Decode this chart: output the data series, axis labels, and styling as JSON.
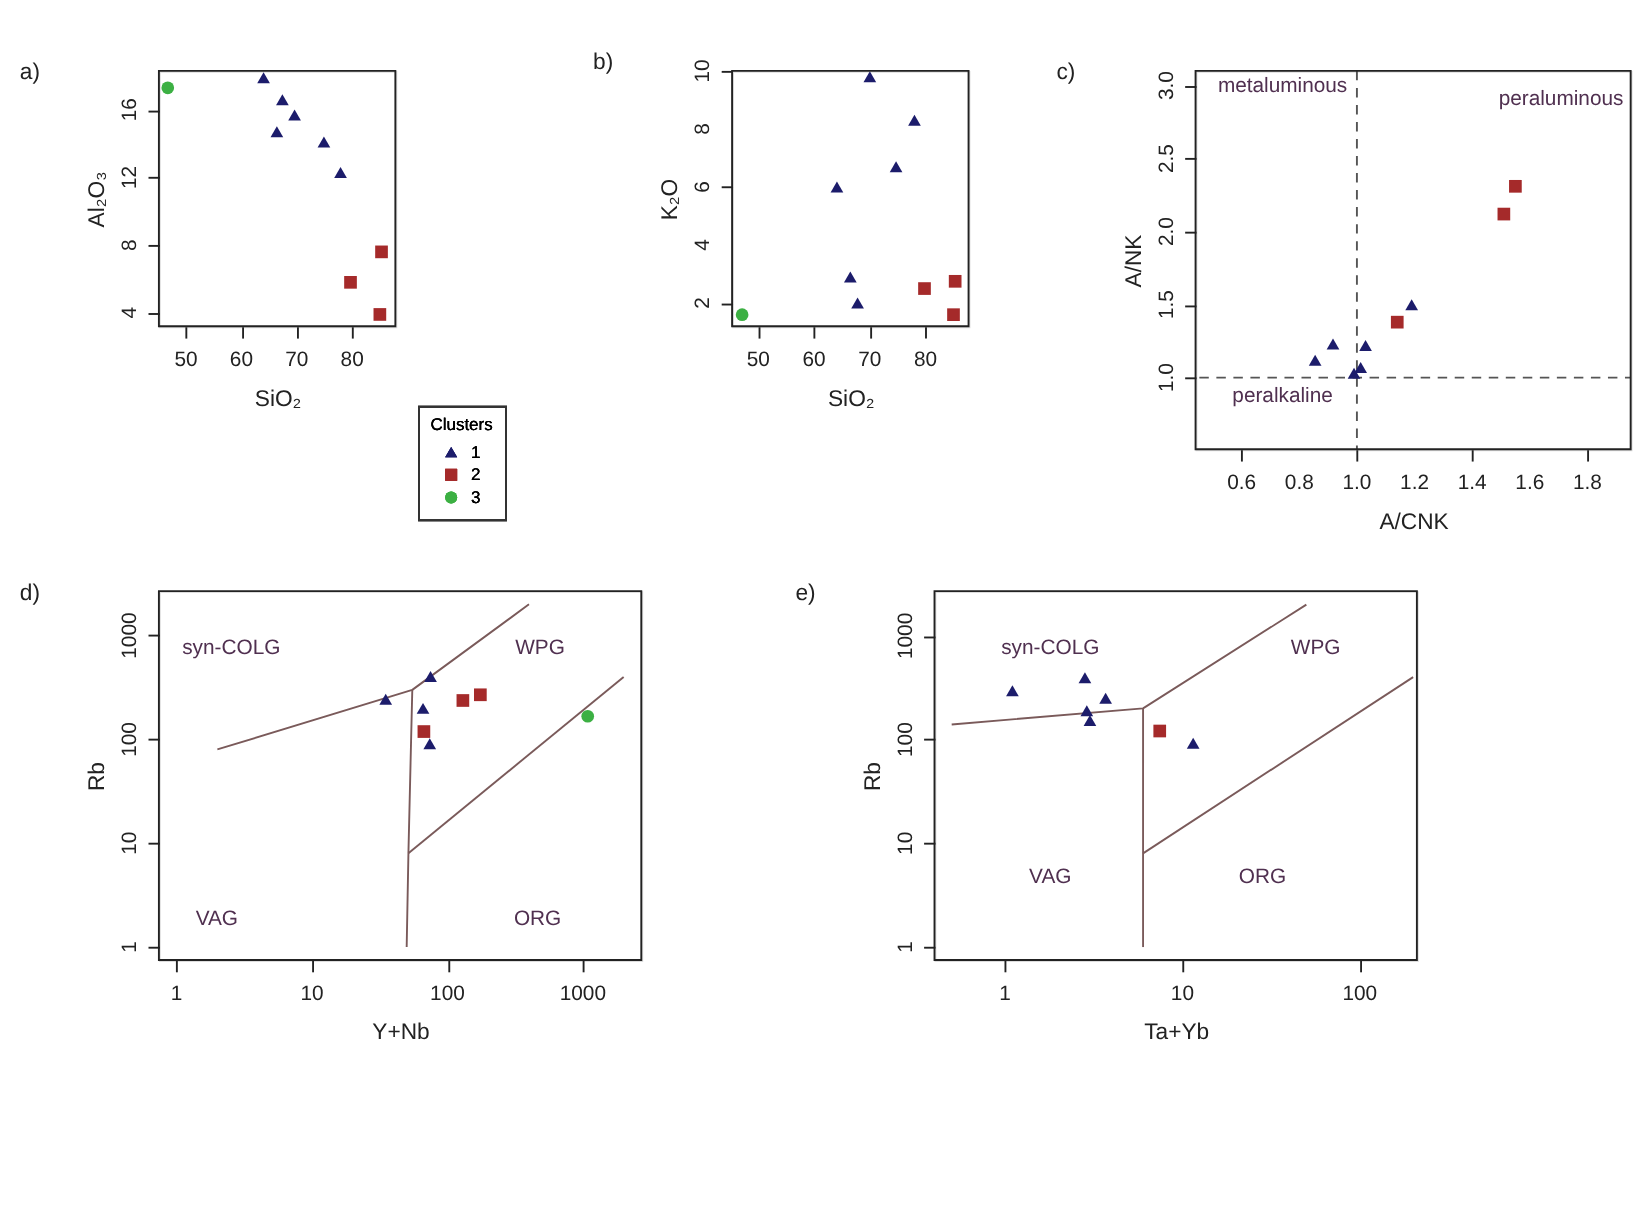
{
  "chart_data": [
    {
      "type": "scatter",
      "title": "a)",
      "xlabel": "SiO₂",
      "ylabel": "Al₂O₃",
      "xlim": [
        45.1,
        87.8
      ],
      "ylim": [
        3.2,
        18.3
      ],
      "xticks": [
        50,
        60,
        70,
        80
      ],
      "yticks": [
        4,
        8,
        12,
        16
      ],
      "grid": false,
      "legend": "bottom right",
      "legend_title": "Clusters",
      "series": [
        {
          "name": "1",
          "color": "#1c1c6b",
          "marker": "triangle",
          "x": [
            64.0,
            67.4,
            69.6,
            66.4,
            74.9,
            77.9
          ],
          "values": [
            17.9,
            16.6,
            15.7,
            14.7,
            14.1,
            12.3
          ]
        },
        {
          "name": "2",
          "color": "#a52a2a",
          "marker": "square",
          "x": [
            85.3,
            79.7,
            85.0
          ],
          "values": [
            7.6,
            5.8,
            3.9
          ]
        },
        {
          "name": "3",
          "color": "#3cb043",
          "marker": "circle",
          "x": [
            46.7
          ],
          "values": [
            17.3
          ]
        }
      ]
    },
    {
      "type": "scatter",
      "title": "b)",
      "xlabel": "SiO₂",
      "ylabel": "K₂O",
      "xlim": [
        45.3,
        87.7
      ],
      "ylim": [
        1.2,
        10.0
      ],
      "xticks": [
        50,
        60,
        70,
        80
      ],
      "yticks": [
        2,
        4,
        6,
        8,
        10
      ],
      "grid": false,
      "series": [
        {
          "color": "#1c1c6b",
          "marker": "triangle",
          "x": [
            70.0,
            78.0,
            74.7,
            64.1,
            66.5,
            67.8
          ],
          "values": [
            9.8,
            8.3,
            6.7,
            6.0,
            2.9,
            2.0
          ]
        },
        {
          "color": "#a52a2a",
          "marker": "square",
          "x": [
            79.8,
            85.3,
            85.0
          ],
          "values": [
            2.5,
            2.75,
            1.6
          ]
        },
        {
          "color": "#3cb043",
          "marker": "circle",
          "x": [
            47.1
          ],
          "values": [
            1.6
          ]
        }
      ]
    },
    {
      "type": "scatter",
      "title": "c)",
      "xlabel": "A/CNK",
      "ylabel": "A/NK",
      "xlim": [
        0.44,
        1.95
      ],
      "ylim": [
        0.51,
        3.1
      ],
      "xticks": [
        0.6,
        0.8,
        {
          "value": 1,
          "label": "1.0"
        },
        1.2,
        1.4,
        1.6,
        1.8
      ],
      "yticks": [
        {
          "value": 1,
          "label": "1.0"
        },
        1.5,
        {
          "value": 2,
          "label": "2.0"
        },
        2.5,
        {
          "value": 3,
          "label": "3.0"
        }
      ],
      "grid": false,
      "ref_lines": [
        {
          "axis": "x",
          "value": 1.0,
          "color": "#555555",
          "line_style": "dashed"
        },
        {
          "axis": "y",
          "value": 1.0,
          "color": "#555555",
          "line_style": "dashed"
        }
      ],
      "annotations": [
        "metaluminous",
        "peraluminous",
        "peralkaline"
      ],
      "series": [
        {
          "color": "#1c1c6b",
          "marker": "triangle",
          "x": [
            0.855,
            0.917,
            1.03,
            1.19,
            1.013,
            0.99
          ],
          "values": [
            1.12,
            1.23,
            1.22,
            1.5,
            1.07,
            1.03
          ]
        },
        {
          "color": "#a52a2a",
          "marker": "square",
          "x": [
            1.14,
            1.51,
            1.55
          ],
          "values": [
            1.38,
            2.12,
            2.31
          ]
        }
      ]
    },
    {
      "type": "scatter",
      "title": "d)",
      "xlabel": "Y+Nb",
      "ylabel": "Rb",
      "log": "xy",
      "xlim": [
        0.74,
        2700
      ],
      "ylim": [
        0.75,
        2680
      ],
      "xticks": [
        1,
        10,
        100,
        1000
      ],
      "yticks": [
        1,
        10,
        100,
        1000
      ],
      "grid": false,
      "annotations": [
        "syn-COLG",
        "WPG",
        "VAG",
        "ORG"
      ],
      "series": [
        {
          "type": "line",
          "color": "#7a5a5a",
          "line_style": "solid",
          "x": [
            2,
            55,
            400
          ],
          "values": [
            80,
            300,
            2000
          ]
        },
        {
          "type": "line",
          "color": "#7a5a5a",
          "line_style": "solid",
          "x": [
            55,
            51.5,
            50
          ],
          "values": [
            300,
            8,
            1
          ]
        },
        {
          "type": "line",
          "color": "#7a5a5a",
          "line_style": "solid",
          "x": [
            51.5,
            2000
          ],
          "values": [
            8,
            400
          ]
        },
        {
          "color": "#1c1c6b",
          "marker": "triangle",
          "x": [
            35,
            75,
            66,
            74
          ],
          "values": [
            243,
            403,
            199,
            91
          ]
        },
        {
          "color": "#a52a2a",
          "marker": "square",
          "x": [
            67,
            130,
            175
          ],
          "values": [
            119,
            237,
            269
          ]
        },
        {
          "color": "#3cb043",
          "marker": "circle",
          "x": [
            1086
          ],
          "values": [
            167
          ]
        }
      ]
    },
    {
      "type": "scatter",
      "title": "e)",
      "xlabel": "Ta+Yb",
      "ylabel": "Rb",
      "log": "xy",
      "xlim": [
        0.4,
        210
      ],
      "ylim": [
        0.75,
        2700
      ],
      "xticks": [
        1,
        10,
        100
      ],
      "yticks": [
        1,
        10,
        100,
        1000
      ],
      "grid": false,
      "annotations": [
        "syn-COLG",
        "WPG",
        "VAG",
        "ORG"
      ],
      "series": [
        {
          "type": "line",
          "color": "#7a5a5a",
          "line_style": "solid",
          "x": [
            0.5,
            6,
            50
          ],
          "values": [
            140,
            200,
            2000
          ]
        },
        {
          "type": "line",
          "color": "#7a5a5a",
          "line_style": "solid",
          "x": [
            6,
            6
          ],
          "values": [
            200,
            1
          ]
        },
        {
          "type": "line",
          "color": "#7a5a5a",
          "line_style": "solid",
          "x": [
            6,
            200
          ],
          "values": [
            8,
            400
          ]
        },
        {
          "color": "#1c1c6b",
          "marker": "triangle",
          "x": [
            1.1,
            2.82,
            3.69,
            2.89,
            3.01,
            11.5
          ],
          "values": [
            295,
            394,
            250,
            190,
            153,
            92
          ]
        },
        {
          "color": "#a52a2a",
          "marker": "square",
          "x": [
            7.45
          ],
          "values": [
            121
          ]
        }
      ]
    }
  ]
}
